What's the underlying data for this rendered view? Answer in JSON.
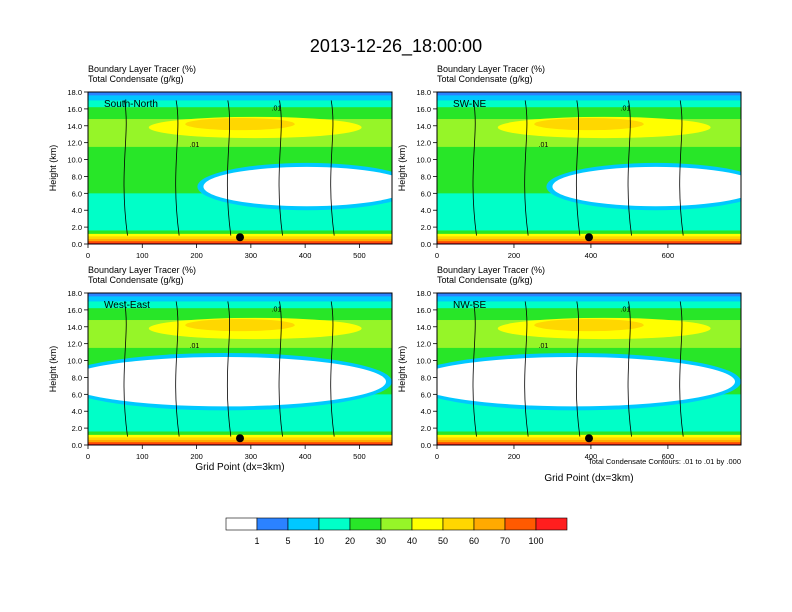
{
  "title": "2013-12-26_18:00:00",
  "chart_data": {
    "type": "heatmap",
    "field_label": "Boundary Layer Tracer   (%)",
    "contour_label": "Total Condensate   (g/kg)",
    "ylabel": "Height (km)",
    "xlabel": "Grid Point (dx=3km)",
    "ylim": [
      0,
      18
    ],
    "yticks": [
      "0.0",
      "2.0",
      "4.0",
      "6.0",
      "8.0",
      "10.0",
      "12.0",
      "14.0",
      "16.0",
      "18.0"
    ],
    "contour_note": "Total Condensate Contours: .01 to .01 by .000",
    "contour_level_label": ".01",
    "panels": [
      {
        "name": "South-North",
        "xmax": 560,
        "xticks": [
          0,
          100,
          200,
          300,
          400,
          500
        ],
        "marker_x": 280
      },
      {
        "name": "SW-NE",
        "xmax": 790,
        "xticks": [
          0,
          200,
          400,
          600
        ],
        "marker_x": 395
      },
      {
        "name": "West-East",
        "xmax": 560,
        "xticks": [
          0,
          100,
          200,
          300,
          400,
          500
        ],
        "marker_x": 280
      },
      {
        "name": "NW-SE",
        "xmax": 790,
        "xticks": [
          0,
          200,
          400,
          600
        ],
        "marker_x": 395
      }
    ],
    "colorbar": {
      "levels": [
        "1",
        "5",
        "10",
        "20",
        "30",
        "40",
        "50",
        "60",
        "70",
        "100"
      ],
      "colors": [
        "#ffffff",
        "#2b82ff",
        "#00c8ff",
        "#00ffc8",
        "#28e628",
        "#96f528",
        "#ffff00",
        "#ffd700",
        "#ffaa00",
        "#ff5a00",
        "#ff1e1e"
      ]
    }
  }
}
